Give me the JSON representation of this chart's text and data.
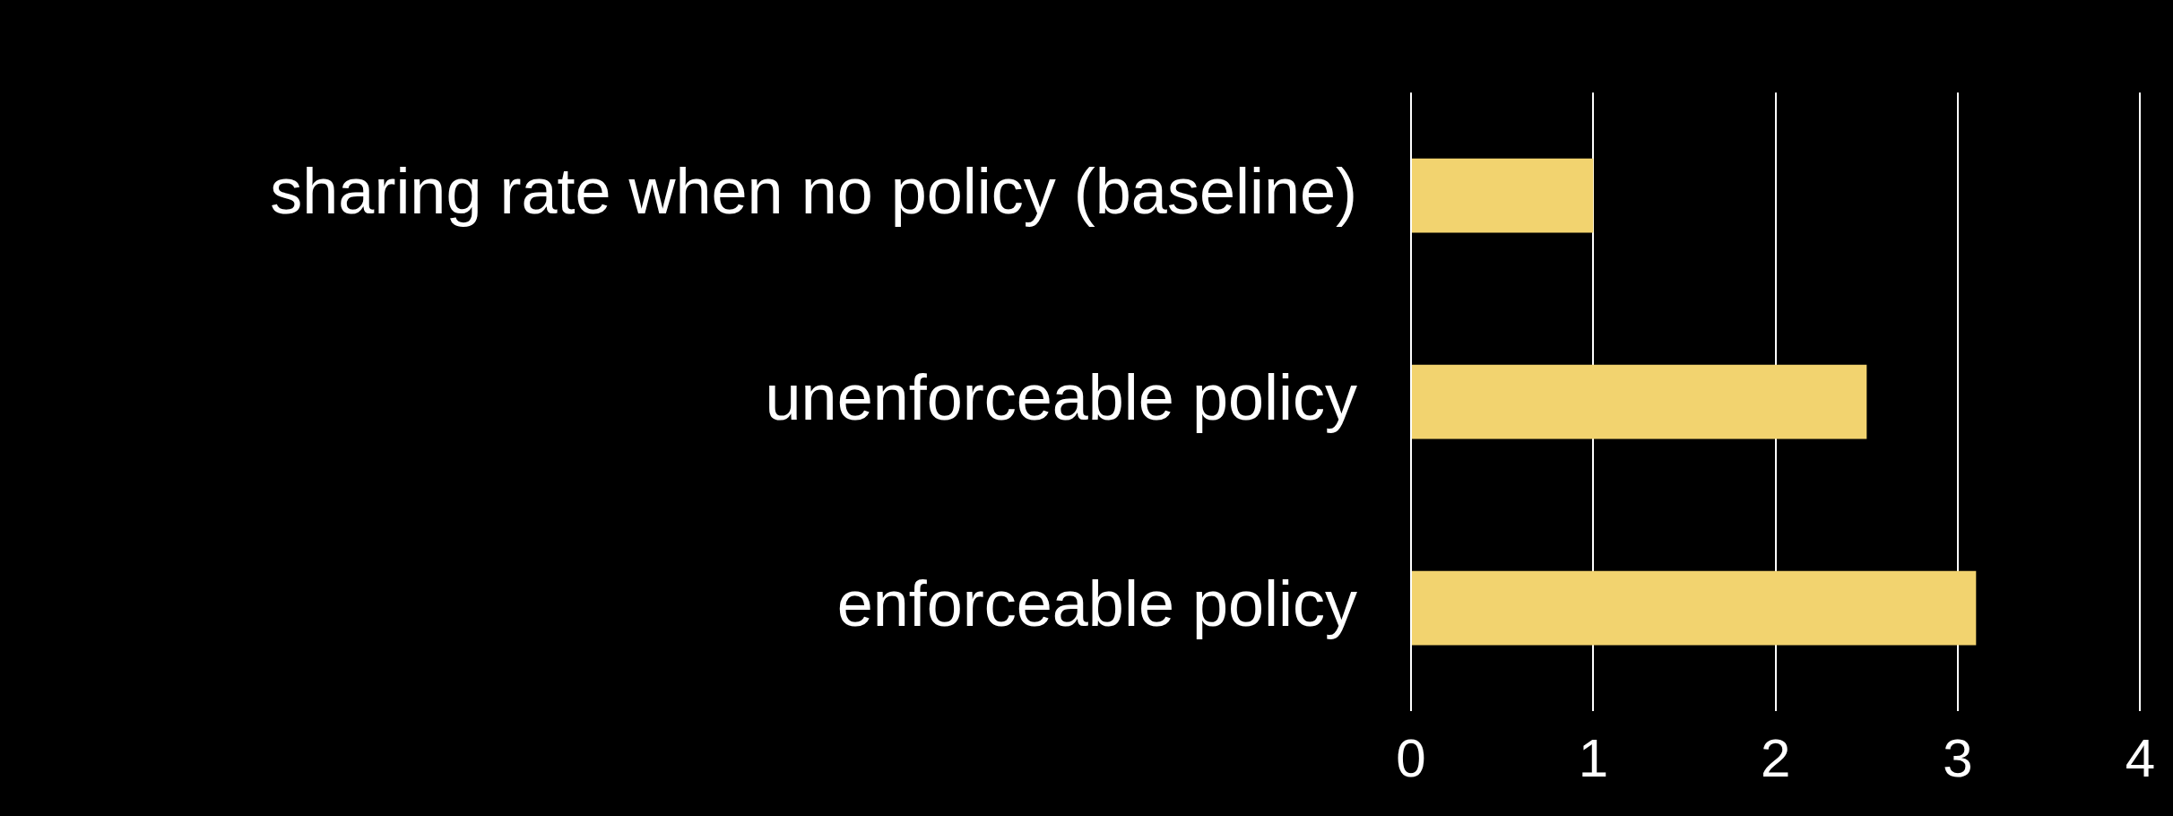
{
  "chart_data": {
    "type": "bar",
    "orientation": "horizontal",
    "categories": [
      "sharing rate when no policy (baseline)",
      "unenforceable policy",
      "enforceable policy"
    ],
    "values": [
      1.0,
      2.5,
      3.1
    ],
    "color": "#f2d36f",
    "xlim": [
      0,
      4
    ],
    "xticks": [
      0,
      1,
      2,
      3,
      4
    ],
    "grid": "x",
    "legend": false
  }
}
